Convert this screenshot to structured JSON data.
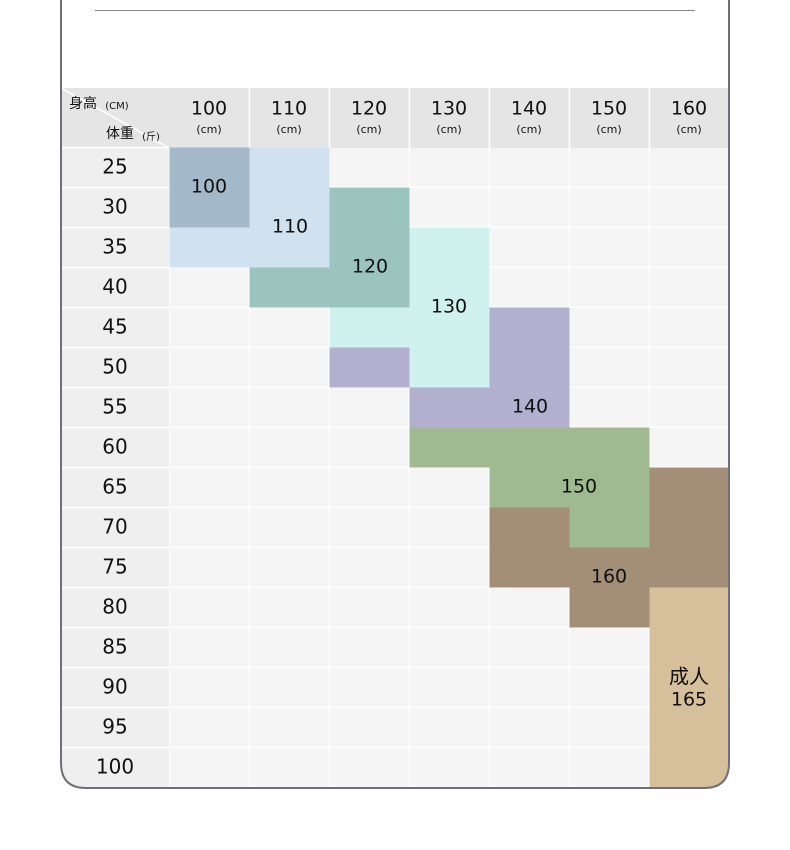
{
  "corner": {
    "height_label": "身高",
    "height_unit": "(CM)",
    "weight_label": "体重",
    "weight_unit": "(斤)"
  },
  "columns": [
    {
      "height": "100",
      "unit": "(cm)"
    },
    {
      "height": "110",
      "unit": "(cm)"
    },
    {
      "height": "120",
      "unit": "(cm)"
    },
    {
      "height": "130",
      "unit": "(cm)"
    },
    {
      "height": "140",
      "unit": "(cm)"
    },
    {
      "height": "150",
      "unit": "(cm)"
    },
    {
      "height": "160",
      "unit": "(cm)"
    }
  ],
  "rows": [
    "25",
    "30",
    "35",
    "40",
    "45",
    "50",
    "55",
    "60",
    "65",
    "70",
    "75",
    "80",
    "85",
    "90",
    "95",
    "100"
  ],
  "sizes": [
    {
      "label": "100"
    },
    {
      "label": "110"
    },
    {
      "label": "120"
    },
    {
      "label": "130"
    },
    {
      "label": "140"
    },
    {
      "label": "150"
    },
    {
      "label": "160"
    },
    {
      "prefix": "成人",
      "label": "165"
    }
  ]
}
